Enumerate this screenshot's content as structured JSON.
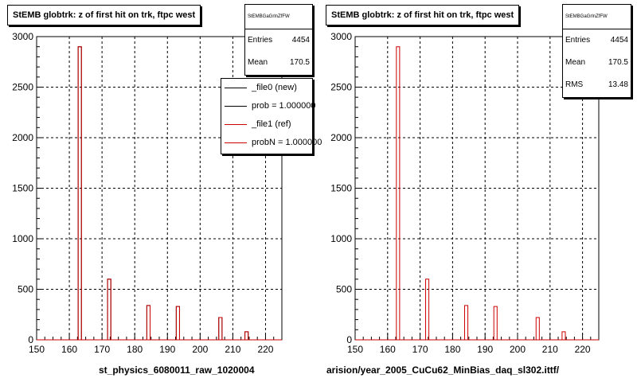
{
  "chart_data": [
    {
      "type": "bar",
      "title": "StEMB globtrk: z of first hit on trk, ftpc west",
      "xlabel": "st_physics_6080011_raw_1020004",
      "xlim": [
        150,
        225
      ],
      "ylim": [
        0,
        3000
      ],
      "xticks": [
        150,
        160,
        170,
        180,
        190,
        200,
        210,
        220
      ],
      "yticks": [
        0,
        500,
        1000,
        1500,
        2000,
        2500,
        3000
      ],
      "grid": true,
      "series": [
        {
          "name": "_file0 (new)",
          "color": "#000000",
          "x": [
            162.7,
            171.7,
            183.7,
            192.7,
            205.7,
            213.7
          ],
          "values": [
            2900,
            600,
            340,
            330,
            220,
            80
          ]
        },
        {
          "name": "_file1 (ref)",
          "color": "#cc0000",
          "x": [
            162.7,
            171.7,
            183.7,
            192.7,
            205.7,
            213.7
          ],
          "values": [
            2900,
            600,
            340,
            330,
            220,
            80
          ]
        }
      ],
      "stats": {
        "header": "StEMBGaGrlnZfFW",
        "entries": "4454",
        "mean": "170.5"
      },
      "legend": {
        "position": "top-right",
        "entries": [
          "_file0 (new)",
          "prob = 1.000000",
          "_file1 (ref)",
          "probN = 1.000000"
        ]
      }
    },
    {
      "type": "bar",
      "title": "StEMB globtrk: z of first hit on trk, ftpc west",
      "xlabel": "arision/year_2005_CuCu62_MinBias_daq_sl302.ittf/",
      "xlim": [
        150,
        225
      ],
      "ylim": [
        0,
        3000
      ],
      "xticks": [
        150,
        160,
        170,
        180,
        190,
        200,
        210,
        220
      ],
      "yticks": [
        0,
        500,
        1000,
        1500,
        2000,
        2500,
        3000
      ],
      "grid": true,
      "series": [
        {
          "name": "",
          "color": "#cc0000",
          "x": [
            162.7,
            171.7,
            183.7,
            192.7,
            205.7,
            213.7
          ],
          "values": [
            2900,
            600,
            340,
            330,
            220,
            80
          ]
        }
      ],
      "stats": {
        "header": "StEMBGaGrlnZfFW",
        "entries": "4454",
        "mean": "170.5",
        "rms": "13.48"
      }
    }
  ],
  "stats_labels": {
    "entries": "Entries",
    "mean": "Mean",
    "rms": "RMS"
  }
}
